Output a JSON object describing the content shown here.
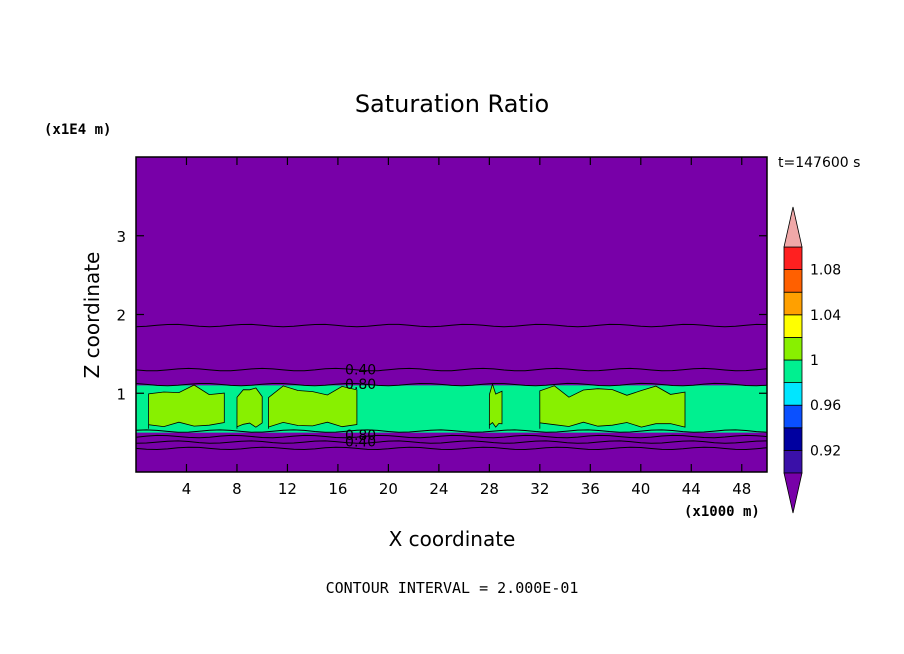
{
  "chart_data": {
    "type": "heatmap",
    "title": "Saturation Ratio",
    "xlabel": "X coordinate",
    "ylabel": "Z coordinate",
    "x_unit": "(x1000 m)",
    "y_unit": "(x1E4 m)",
    "time_label": "t=147600 s",
    "footer": "CONTOUR INTERVAL = 2.000E-01",
    "xlim": [
      0,
      50
    ],
    "ylim": [
      0,
      4
    ],
    "x_ticks": [
      "4",
      "8",
      "12",
      "16",
      "20",
      "24",
      "28",
      "32",
      "36",
      "40",
      "44",
      "48"
    ],
    "y_ticks": [
      "1",
      "2",
      "3"
    ],
    "colorbar": {
      "levels": [
        0.9,
        0.92,
        0.94,
        0.96,
        0.98,
        1.0,
        1.02,
        1.04,
        1.06,
        1.08,
        1.1
      ],
      "labels": [
        {
          "value": 0.92,
          "text": "0.92"
        },
        {
          "value": 0.96,
          "text": "0.96"
        },
        {
          "value": 1.0,
          "text": "1"
        },
        {
          "value": 1.04,
          "text": "1.04"
        },
        {
          "value": 1.08,
          "text": "1.08"
        }
      ],
      "colors": [
        "#3a10a8",
        "#0000a0",
        "#0a50ff",
        "#00e6ff",
        "#00f090",
        "#88f000",
        "#ffff00",
        "#ffa000",
        "#ff6000",
        "#ff2020"
      ],
      "under_color": "#7800a8",
      "over_color": "#f0a8a8"
    },
    "regions": {
      "background_color": "#7800a8",
      "moist_layer_z": [
        0.5,
        1.1
      ],
      "moist_layer_color": "#00f090",
      "supersaturated_color": "#88f000",
      "supersaturated_patches_x": [
        [
          1,
          7
        ],
        [
          8,
          10
        ],
        [
          10.5,
          17.5
        ],
        [
          28,
          29
        ],
        [
          32,
          43.5
        ]
      ]
    },
    "contour_lines_z": [
      0.3,
      0.38,
      0.45,
      0.52,
      1.11,
      1.3,
      1.86
    ],
    "contour_labels": [
      {
        "text": "0.40",
        "x": 17.8,
        "z": 1.3
      },
      {
        "text": "0.80",
        "x": 17.8,
        "z": 1.12
      },
      {
        "text": "0.80",
        "x": 17.8,
        "z": 0.47
      },
      {
        "text": "0.40",
        "x": 17.8,
        "z": 0.39
      }
    ]
  }
}
